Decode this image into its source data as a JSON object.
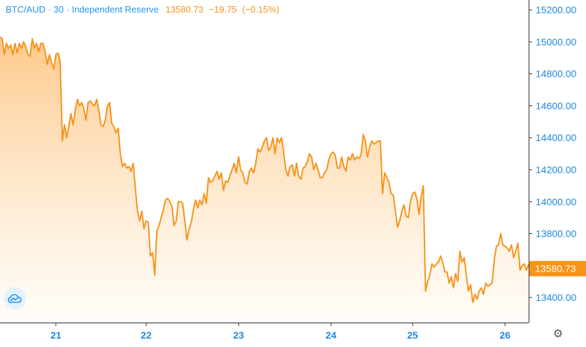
{
  "header": {
    "symbol": "BTC/AUD",
    "interval": "30",
    "exchange": "Independent Reserve",
    "separator": "·",
    "last": "13580.73",
    "change": "−19.75",
    "change_pct": "(−0.15%)"
  },
  "colors": {
    "line": "#f7931a",
    "fill_top": "#fdc98a",
    "fill_bottom": "#fffaf3",
    "axis_text": "#1e88e5",
    "axis_line": "#2f2f2f",
    "price_label_bg": "#f7931a"
  },
  "icons": {
    "logo": "tradingview-cloud-icon",
    "settings": "gear-icon"
  },
  "chart_data": {
    "type": "area",
    "title": "BTC/AUD · 30 · Independent Reserve",
    "x_tick_labels": [
      "21",
      "22",
      "23",
      "24",
      "25",
      "26"
    ],
    "x_tick_index": [
      26,
      68,
      111,
      154,
      192,
      235
    ],
    "y_ticks": [
      13400,
      13600,
      13800,
      14000,
      14200,
      14400,
      14600,
      14800,
      15000,
      15200
    ],
    "y_tick_labels": [
      "13400.00",
      "13600.00",
      "13800.00",
      "14000.00",
      "14200.00",
      "14400.00",
      "14600.00",
      "14800.00",
      "15000.00",
      "15200.00"
    ],
    "ylim": [
      13230,
      15240
    ],
    "last_price_label": "13580.73",
    "grid": false,
    "values": [
      15030,
      15020,
      14920,
      14990,
      14960,
      14980,
      14920,
      14990,
      14930,
      14990,
      14960,
      15000,
      14970,
      14920,
      14910,
      15020,
      14960,
      14990,
      14940,
      14990,
      14990,
      14940,
      14860,
      14920,
      14870,
      14830,
      14920,
      14930,
      14880,
      14380,
      14480,
      14400,
      14470,
      14550,
      14480,
      14570,
      14640,
      14600,
      14620,
      14580,
      14510,
      14620,
      14630,
      14610,
      14600,
      14640,
      14570,
      14480,
      14470,
      14510,
      14600,
      14620,
      14490,
      14470,
      14430,
      14460,
      14300,
      14220,
      14240,
      14210,
      14220,
      14190,
      14240,
      14080,
      13940,
      13880,
      13940,
      13830,
      13880,
      13870,
      13660,
      13680,
      13540,
      13820,
      13850,
      13900,
      13950,
      14010,
      14020,
      14000,
      13970,
      13850,
      13880,
      14000,
      14000,
      13990,
      13880,
      13760,
      13830,
      13870,
      13950,
      14010,
      13960,
      14010,
      13980,
      14050,
      13990,
      14150,
      14120,
      14130,
      14160,
      14190,
      14140,
      14180,
      14070,
      14130,
      14120,
      14160,
      14200,
      14240,
      14180,
      14280,
      14200,
      14180,
      14120,
      14110,
      14190,
      14210,
      14180,
      14240,
      14330,
      14310,
      14340,
      14380,
      14400,
      14320,
      14340,
      14400,
      14300,
      14400,
      14370,
      14400,
      14310,
      14200,
      14160,
      14220,
      14230,
      14160,
      14240,
      14160,
      14140,
      14210,
      14220,
      14250,
      14300,
      14280,
      14200,
      14240,
      14200,
      14150,
      14150,
      14180,
      14200,
      14260,
      14300,
      14310,
      14290,
      14210,
      14210,
      14280,
      14220,
      14190,
      14280,
      14260,
      14300,
      14260,
      14280,
      14270,
      14290,
      14420,
      14380,
      14280,
      14340,
      14380,
      14360,
      14370,
      14380,
      14380,
      14050,
      14180,
      14150,
      14120,
      14050,
      14040,
      13940,
      13840,
      13880,
      13940,
      13980,
      13910,
      13900,
      14000,
      14050,
      14060,
      14020,
      13920,
      14030,
      14100,
      13440,
      13500,
      13540,
      13610,
      13590,
      13610,
      13620,
      13660,
      13620,
      13560,
      13560,
      13490,
      13530,
      13460,
      13550,
      13500,
      13690,
      13620,
      13650,
      13540,
      13440,
      13480,
      13370,
      13420,
      13390,
      13440,
      13460,
      13420,
      13490,
      13470,
      13480,
      13490,
      13640,
      13720,
      13730,
      13800,
      13730,
      13720,
      13710,
      13690,
      13730,
      13650,
      13690,
      13740,
      13570,
      13600,
      13610,
      13570,
      13610
    ]
  }
}
